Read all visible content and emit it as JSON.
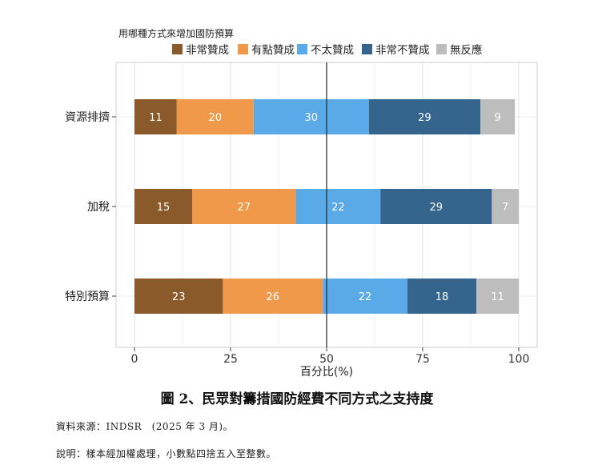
{
  "chart_data": {
    "type": "bar",
    "orientation": "horizontal",
    "stacked": true,
    "legend_title": "用哪種方式來增加國防預算",
    "legend_position": "top",
    "categories": [
      "資源排擠",
      "加稅",
      "特別預算"
    ],
    "series": [
      {
        "name": "非常贊成",
        "color": "#8B5A2B",
        "values": [
          11,
          15,
          23
        ]
      },
      {
        "name": "有點贊成",
        "color": "#F0994A",
        "values": [
          20,
          27,
          26
        ]
      },
      {
        "name": "不太贊成",
        "color": "#5AAAE8",
        "values": [
          30,
          22,
          22
        ]
      },
      {
        "name": "非常不贊成",
        "color": "#35648C",
        "values": [
          29,
          29,
          18
        ]
      },
      {
        "name": "無反應",
        "color": "#BDBDBD",
        "values": [
          9,
          7,
          11
        ]
      }
    ],
    "xlabel": "百分比(%)",
    "xlim": [
      0,
      100
    ],
    "xticks": [
      0,
      25,
      50,
      75,
      100
    ],
    "reference_line": 50,
    "grid": true
  },
  "caption": "圖 2、民眾對籌措國防經費不同方式之支持度",
  "source_note": "資料來源：INDSR　(2025 年 3 月)。",
  "explain_note": "說明：樣本經加權處理，小數點四捨五入至整數。"
}
